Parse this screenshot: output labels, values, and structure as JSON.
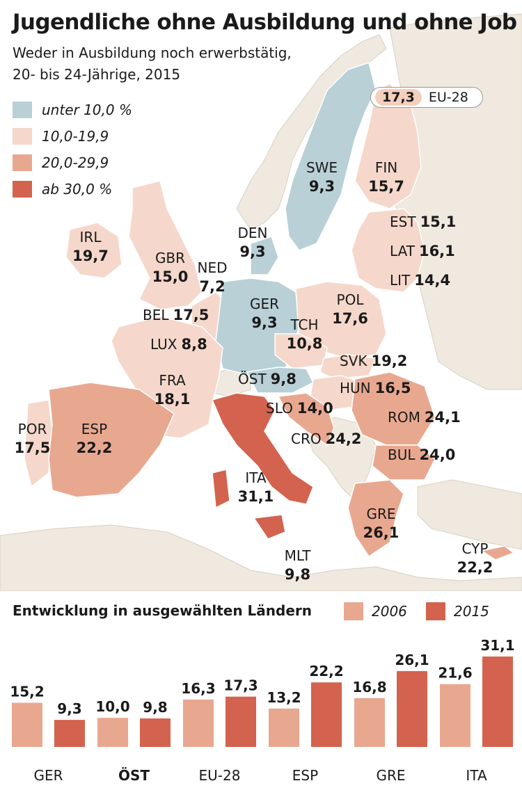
{
  "title": "Jugendliche ohne Ausbildung und ohne Job",
  "subtitle_line1": "Weder in Ausbildung noch erwerbstätig,",
  "subtitle_line2": "20- bis 24-Jährige, 2015",
  "legend": [
    {
      "label": "unter 10,0 %",
      "color": "#b8d0d6"
    },
    {
      "label": "10,0-19,9",
      "color": "#f5d8cb"
    },
    {
      "label": "20,0-29,9",
      "color": "#e8a88f"
    },
    {
      "label": "ab 30,0 %",
      "color": "#d3634e"
    }
  ],
  "eu28": {
    "value": "17,3",
    "name": "EU-28"
  },
  "countries": [
    {
      "code": "SWE",
      "value": "9,3"
    },
    {
      "code": "FIN",
      "value": "15,7"
    },
    {
      "code": "EST",
      "value": "15,1"
    },
    {
      "code": "LAT",
      "value": "16,1"
    },
    {
      "code": "LIT",
      "value": "14,4"
    },
    {
      "code": "IRL",
      "value": "19,7"
    },
    {
      "code": "GBR",
      "value": "15,0"
    },
    {
      "code": "DEN",
      "value": "9,3"
    },
    {
      "code": "NED",
      "value": "7,2"
    },
    {
      "code": "BEL",
      "value": "17,5"
    },
    {
      "code": "LUX",
      "value": "8,8"
    },
    {
      "code": "GER",
      "value": "9,3"
    },
    {
      "code": "POL",
      "value": "17,6"
    },
    {
      "code": "TCH",
      "value": "10,8"
    },
    {
      "code": "SVK",
      "value": "19,2"
    },
    {
      "code": "FRA",
      "value": "18,1"
    },
    {
      "code": "ÖST",
      "value": "9,8"
    },
    {
      "code": "HUN",
      "value": "16,5"
    },
    {
      "code": "SLO",
      "value": "14,0"
    },
    {
      "code": "ROM",
      "value": "24,1"
    },
    {
      "code": "CRO",
      "value": "24,2"
    },
    {
      "code": "BUL",
      "value": "24,0"
    },
    {
      "code": "POR",
      "value": "17,5"
    },
    {
      "code": "ESP",
      "value": "22,2"
    },
    {
      "code": "ITA",
      "value": "31,1"
    },
    {
      "code": "GRE",
      "value": "26,1"
    },
    {
      "code": "MLT",
      "value": "9,8"
    },
    {
      "code": "CYP",
      "value": "22,2"
    }
  ],
  "chart_data": {
    "type": "bar",
    "title": "Entwicklung in ausgewählten Ländern",
    "categories": [
      "GER",
      "ÖST",
      "EU-28",
      "ESP",
      "GRE",
      "ITA"
    ],
    "series": [
      {
        "name": "2006",
        "color": "#e8a88f",
        "values": [
          15.2,
          10.0,
          16.3,
          13.2,
          16.8,
          21.6
        ],
        "labels": [
          "15,2",
          "10,0",
          "16,3",
          "13,2",
          "16,8",
          "21,6"
        ]
      },
      {
        "name": "2015",
        "color": "#d3634e",
        "values": [
          9.3,
          9.8,
          17.3,
          22.2,
          26.1,
          31.1
        ],
        "labels": [
          "9,3",
          "9,8",
          "17,3",
          "22,2",
          "26,1",
          "31,1"
        ]
      }
    ],
    "highlight": "ÖST",
    "ylim": [
      0,
      31.1
    ]
  }
}
